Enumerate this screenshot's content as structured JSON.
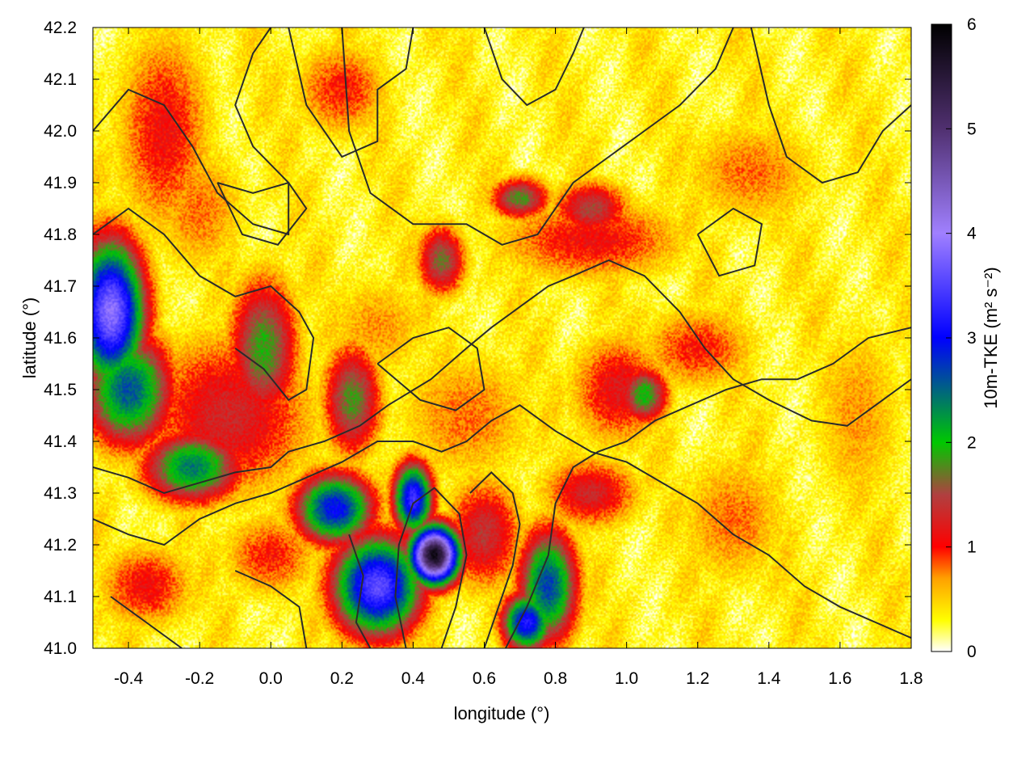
{
  "chart_data": {
    "type": "heatmap",
    "title": "",
    "xlabel": "longitude (°)",
    "ylabel": "latitude (°)",
    "colorbar_label": "10m-TKE (m² s⁻²)",
    "xlim": [
      -0.5,
      1.8
    ],
    "ylim": [
      41.0,
      42.2
    ],
    "clim": [
      0,
      6
    ],
    "x_ticks": [
      -0.4,
      -0.2,
      0.0,
      0.2,
      0.4,
      0.6,
      0.8,
      1.0,
      1.2,
      1.4,
      1.6,
      1.8
    ],
    "x_tick_labels": [
      "-0.4",
      "-0.2",
      "0.0",
      "0.2",
      "0.4",
      "0.6",
      "0.8",
      "1.0",
      "1.2",
      "1.4",
      "1.6",
      "1.8"
    ],
    "y_ticks": [
      41.0,
      41.1,
      41.2,
      41.3,
      41.4,
      41.5,
      41.6,
      41.7,
      41.8,
      41.9,
      42.0,
      42.1,
      42.2
    ],
    "y_tick_labels": [
      "41.0",
      "41.1",
      "41.2",
      "41.3",
      "41.4",
      "41.5",
      "41.6",
      "41.7",
      "41.8",
      "41.9",
      "42.0",
      "42.1",
      "42.2"
    ],
    "colorbar_ticks": [
      0,
      1,
      2,
      3,
      4,
      5,
      6
    ],
    "colorbar_tick_labels": [
      "0",
      "1",
      "2",
      "3",
      "4",
      "5",
      "6"
    ],
    "colormap": [
      {
        "value": 0.0,
        "color": "#ffffff"
      },
      {
        "value": 0.3,
        "color": "#ffff00"
      },
      {
        "value": 0.7,
        "color": "#ffa000"
      },
      {
        "value": 1.0,
        "color": "#ff0000"
      },
      {
        "value": 1.5,
        "color": "#b04040"
      },
      {
        "value": 2.0,
        "color": "#00c800"
      },
      {
        "value": 3.0,
        "color": "#0000ff"
      },
      {
        "value": 4.0,
        "color": "#a080ff"
      },
      {
        "value": 5.0,
        "color": "#503070"
      },
      {
        "value": 6.0,
        "color": "#000000"
      }
    ],
    "tke_regions": [
      {
        "lon": 0.46,
        "lat": 41.18,
        "sx": 0.05,
        "sy": 0.04,
        "peak": 5.8
      },
      {
        "lon": 0.3,
        "lat": 41.12,
        "sx": 0.09,
        "sy": 0.07,
        "peak": 3.6
      },
      {
        "lon": 0.18,
        "lat": 41.27,
        "sx": 0.08,
        "sy": 0.05,
        "peak": 3.0
      },
      {
        "lon": 0.4,
        "lat": 41.29,
        "sx": 0.04,
        "sy": 0.05,
        "peak": 3.4
      },
      {
        "lon": -0.45,
        "lat": 41.65,
        "sx": 0.07,
        "sy": 0.1,
        "peak": 3.9
      },
      {
        "lon": -0.4,
        "lat": 41.5,
        "sx": 0.09,
        "sy": 0.08,
        "peak": 2.6
      },
      {
        "lon": -0.22,
        "lat": 41.35,
        "sx": 0.1,
        "sy": 0.05,
        "peak": 2.4
      },
      {
        "lon": -0.02,
        "lat": 41.58,
        "sx": 0.07,
        "sy": 0.1,
        "peak": 1.9
      },
      {
        "lon": 0.23,
        "lat": 41.48,
        "sx": 0.06,
        "sy": 0.08,
        "peak": 1.8
      },
      {
        "lon": -0.12,
        "lat": 41.45,
        "sx": 0.18,
        "sy": 0.12,
        "peak": 1.3
      },
      {
        "lon": 0.78,
        "lat": 41.12,
        "sx": 0.06,
        "sy": 0.08,
        "peak": 2.7
      },
      {
        "lon": 0.72,
        "lat": 41.05,
        "sx": 0.05,
        "sy": 0.04,
        "peak": 3.2
      },
      {
        "lon": 0.6,
        "lat": 41.22,
        "sx": 0.08,
        "sy": 0.08,
        "peak": 1.4
      },
      {
        "lon": 0.9,
        "lat": 41.3,
        "sx": 0.1,
        "sy": 0.05,
        "peak": 1.3
      },
      {
        "lon": 1.05,
        "lat": 41.49,
        "sx": 0.05,
        "sy": 0.04,
        "peak": 2.0
      },
      {
        "lon": 0.98,
        "lat": 41.5,
        "sx": 0.1,
        "sy": 0.08,
        "peak": 1.2
      },
      {
        "lon": 1.2,
        "lat": 41.58,
        "sx": 0.12,
        "sy": 0.06,
        "peak": 1.0
      },
      {
        "lon": 0.48,
        "lat": 41.75,
        "sx": 0.05,
        "sy": 0.05,
        "peak": 1.7
      },
      {
        "lon": 0.7,
        "lat": 41.87,
        "sx": 0.06,
        "sy": 0.03,
        "peak": 1.8
      },
      {
        "lon": 0.9,
        "lat": 41.85,
        "sx": 0.08,
        "sy": 0.04,
        "peak": 1.5
      },
      {
        "lon": 0.9,
        "lat": 41.79,
        "sx": 0.2,
        "sy": 0.06,
        "peak": 1.1
      },
      {
        "lon": -0.3,
        "lat": 42.0,
        "sx": 0.1,
        "sy": 0.15,
        "peak": 1.1
      },
      {
        "lon": 0.2,
        "lat": 42.08,
        "sx": 0.1,
        "sy": 0.07,
        "peak": 1.0
      },
      {
        "lon": -0.35,
        "lat": 41.12,
        "sx": 0.1,
        "sy": 0.06,
        "peak": 1.1
      },
      {
        "lon": 0.0,
        "lat": 41.18,
        "sx": 0.1,
        "sy": 0.06,
        "peak": 1.0
      },
      {
        "lon": 1.3,
        "lat": 41.25,
        "sx": 0.12,
        "sy": 0.1,
        "peak": 0.8
      },
      {
        "lon": 0.55,
        "lat": 41.45,
        "sx": 0.15,
        "sy": 0.1,
        "peak": 0.8
      },
      {
        "lon": 1.35,
        "lat": 41.92,
        "sx": 0.15,
        "sy": 0.08,
        "peak": 0.8
      },
      {
        "lon": 0.3,
        "lat": 41.62,
        "sx": 0.12,
        "sy": 0.08,
        "peak": 0.7
      },
      {
        "lon": 1.65,
        "lat": 41.45,
        "sx": 0.1,
        "sy": 0.15,
        "peak": 0.7
      },
      {
        "lon": -0.2,
        "lat": 41.85,
        "sx": 0.1,
        "sy": 0.1,
        "peak": 0.8
      }
    ],
    "contours": [
      [
        [
          -0.5,
          42.0
        ],
        [
          -0.4,
          42.08
        ],
        [
          -0.3,
          42.05
        ],
        [
          -0.22,
          41.97
        ],
        [
          -0.15,
          41.88
        ],
        [
          -0.05,
          41.82
        ],
        [
          0.05,
          41.8
        ],
        [
          0.05,
          41.9
        ],
        [
          -0.05,
          41.97
        ],
        [
          -0.1,
          42.05
        ],
        [
          -0.05,
          42.15
        ],
        [
          0.0,
          42.2
        ]
      ],
      [
        [
          0.05,
          42.2
        ],
        [
          0.1,
          42.05
        ],
        [
          0.2,
          41.95
        ],
        [
          0.3,
          41.98
        ],
        [
          0.3,
          42.08
        ],
        [
          0.38,
          42.12
        ],
        [
          0.4,
          42.2
        ]
      ],
      [
        [
          -0.5,
          41.8
        ],
        [
          -0.4,
          41.85
        ],
        [
          -0.3,
          41.8
        ],
        [
          -0.2,
          41.72
        ],
        [
          -0.1,
          41.68
        ],
        [
          0.0,
          41.7
        ],
        [
          0.08,
          41.65
        ],
        [
          0.12,
          41.6
        ],
        [
          0.1,
          41.5
        ],
        [
          0.05,
          41.48
        ],
        [
          -0.02,
          41.54
        ],
        [
          -0.1,
          41.58
        ]
      ],
      [
        [
          -0.5,
          41.35
        ],
        [
          -0.4,
          41.33
        ],
        [
          -0.3,
          41.3
        ],
        [
          -0.2,
          41.32
        ],
        [
          -0.1,
          41.34
        ],
        [
          0.0,
          41.35
        ],
        [
          0.05,
          41.38
        ],
        [
          0.15,
          41.4
        ],
        [
          0.25,
          41.43
        ],
        [
          0.33,
          41.47
        ],
        [
          0.45,
          41.52
        ],
        [
          0.55,
          41.58
        ],
        [
          0.62,
          41.62
        ],
        [
          0.7,
          41.66
        ],
        [
          0.78,
          41.7
        ],
        [
          0.85,
          41.72
        ],
        [
          0.95,
          41.75
        ],
        [
          1.05,
          41.72
        ],
        [
          1.15,
          41.65
        ],
        [
          1.22,
          41.58
        ],
        [
          1.3,
          41.52
        ],
        [
          1.4,
          41.48
        ],
        [
          1.52,
          41.44
        ],
        [
          1.62,
          41.43
        ],
        [
          1.72,
          41.48
        ],
        [
          1.8,
          41.52
        ]
      ],
      [
        [
          -0.5,
          41.25
        ],
        [
          -0.4,
          41.22
        ],
        [
          -0.3,
          41.2
        ],
        [
          -0.2,
          41.25
        ],
        [
          -0.1,
          41.28
        ],
        [
          0.0,
          41.3
        ],
        [
          0.1,
          41.33
        ],
        [
          0.2,
          41.36
        ],
        [
          0.3,
          41.4
        ],
        [
          0.4,
          41.4
        ],
        [
          0.48,
          41.38
        ],
        [
          0.55,
          41.4
        ],
        [
          0.62,
          41.44
        ],
        [
          0.7,
          41.47
        ],
        [
          0.8,
          41.42
        ],
        [
          0.9,
          41.38
        ],
        [
          1.0,
          41.36
        ],
        [
          1.1,
          41.32
        ],
        [
          1.2,
          41.28
        ],
        [
          1.3,
          41.22
        ],
        [
          1.4,
          41.18
        ],
        [
          1.5,
          41.12
        ],
        [
          1.6,
          41.08
        ],
        [
          1.7,
          41.05
        ],
        [
          1.8,
          41.02
        ]
      ],
      [
        [
          0.48,
          41.0
        ],
        [
          0.52,
          41.08
        ],
        [
          0.55,
          41.18
        ],
        [
          0.53,
          41.26
        ],
        [
          0.46,
          41.31
        ],
        [
          0.4,
          41.28
        ],
        [
          0.36,
          41.2
        ],
        [
          0.35,
          41.1
        ],
        [
          0.38,
          41.0
        ]
      ],
      [
        [
          0.66,
          41.0
        ],
        [
          0.72,
          41.08
        ],
        [
          0.78,
          41.18
        ],
        [
          0.8,
          41.28
        ],
        [
          0.85,
          41.35
        ],
        [
          0.92,
          41.38
        ],
        [
          1.0,
          41.4
        ],
        [
          1.08,
          41.44
        ],
        [
          1.18,
          41.47
        ],
        [
          1.28,
          41.5
        ],
        [
          1.38,
          41.52
        ],
        [
          1.48,
          41.52
        ],
        [
          1.58,
          41.55
        ],
        [
          1.68,
          41.6
        ],
        [
          1.8,
          41.62
        ]
      ],
      [
        [
          0.6,
          41.0
        ],
        [
          0.64,
          41.08
        ],
        [
          0.68,
          41.16
        ],
        [
          0.7,
          41.24
        ],
        [
          0.68,
          41.3
        ],
        [
          0.62,
          41.34
        ],
        [
          0.56,
          41.3
        ]
      ],
      [
        [
          0.2,
          42.2
        ],
        [
          0.22,
          42.0
        ],
        [
          0.28,
          41.88
        ],
        [
          0.4,
          41.82
        ],
        [
          0.55,
          41.82
        ],
        [
          0.65,
          41.78
        ],
        [
          0.75,
          41.8
        ],
        [
          0.85,
          41.9
        ],
        [
          0.95,
          41.95
        ],
        [
          1.05,
          42.0
        ],
        [
          1.15,
          42.05
        ],
        [
          1.25,
          42.12
        ],
        [
          1.3,
          42.2
        ]
      ],
      [
        [
          0.6,
          42.2
        ],
        [
          0.65,
          42.1
        ],
        [
          0.72,
          42.05
        ],
        [
          0.8,
          42.08
        ],
        [
          0.85,
          42.15
        ],
        [
          0.88,
          42.2
        ]
      ],
      [
        [
          1.35,
          42.2
        ],
        [
          1.4,
          42.05
        ],
        [
          1.45,
          41.95
        ],
        [
          1.55,
          41.9
        ],
        [
          1.65,
          41.92
        ],
        [
          1.72,
          42.0
        ],
        [
          1.8,
          42.05
        ]
      ],
      [
        [
          -0.15,
          41.9
        ],
        [
          -0.05,
          41.88
        ],
        [
          0.05,
          41.9
        ],
        [
          0.1,
          41.85
        ],
        [
          0.02,
          41.78
        ],
        [
          -0.08,
          41.8
        ],
        [
          -0.15,
          41.9
        ]
      ],
      [
        [
          0.3,
          41.55
        ],
        [
          0.4,
          41.6
        ],
        [
          0.5,
          41.62
        ],
        [
          0.58,
          41.58
        ],
        [
          0.6,
          41.5
        ],
        [
          0.52,
          41.46
        ],
        [
          0.42,
          41.48
        ],
        [
          0.3,
          41.55
        ]
      ],
      [
        [
          1.2,
          41.8
        ],
        [
          1.3,
          41.85
        ],
        [
          1.38,
          41.82
        ],
        [
          1.36,
          41.74
        ],
        [
          1.26,
          41.72
        ],
        [
          1.2,
          41.8
        ]
      ],
      [
        [
          -0.45,
          41.1
        ],
        [
          -0.35,
          41.05
        ],
        [
          -0.25,
          41.0
        ]
      ],
      [
        [
          -0.1,
          41.15
        ],
        [
          0.0,
          41.12
        ],
        [
          0.08,
          41.08
        ],
        [
          0.1,
          41.0
        ]
      ],
      [
        [
          0.22,
          41.22
        ],
        [
          0.26,
          41.14
        ],
        [
          0.24,
          41.05
        ],
        [
          0.28,
          41.0
        ]
      ]
    ]
  }
}
